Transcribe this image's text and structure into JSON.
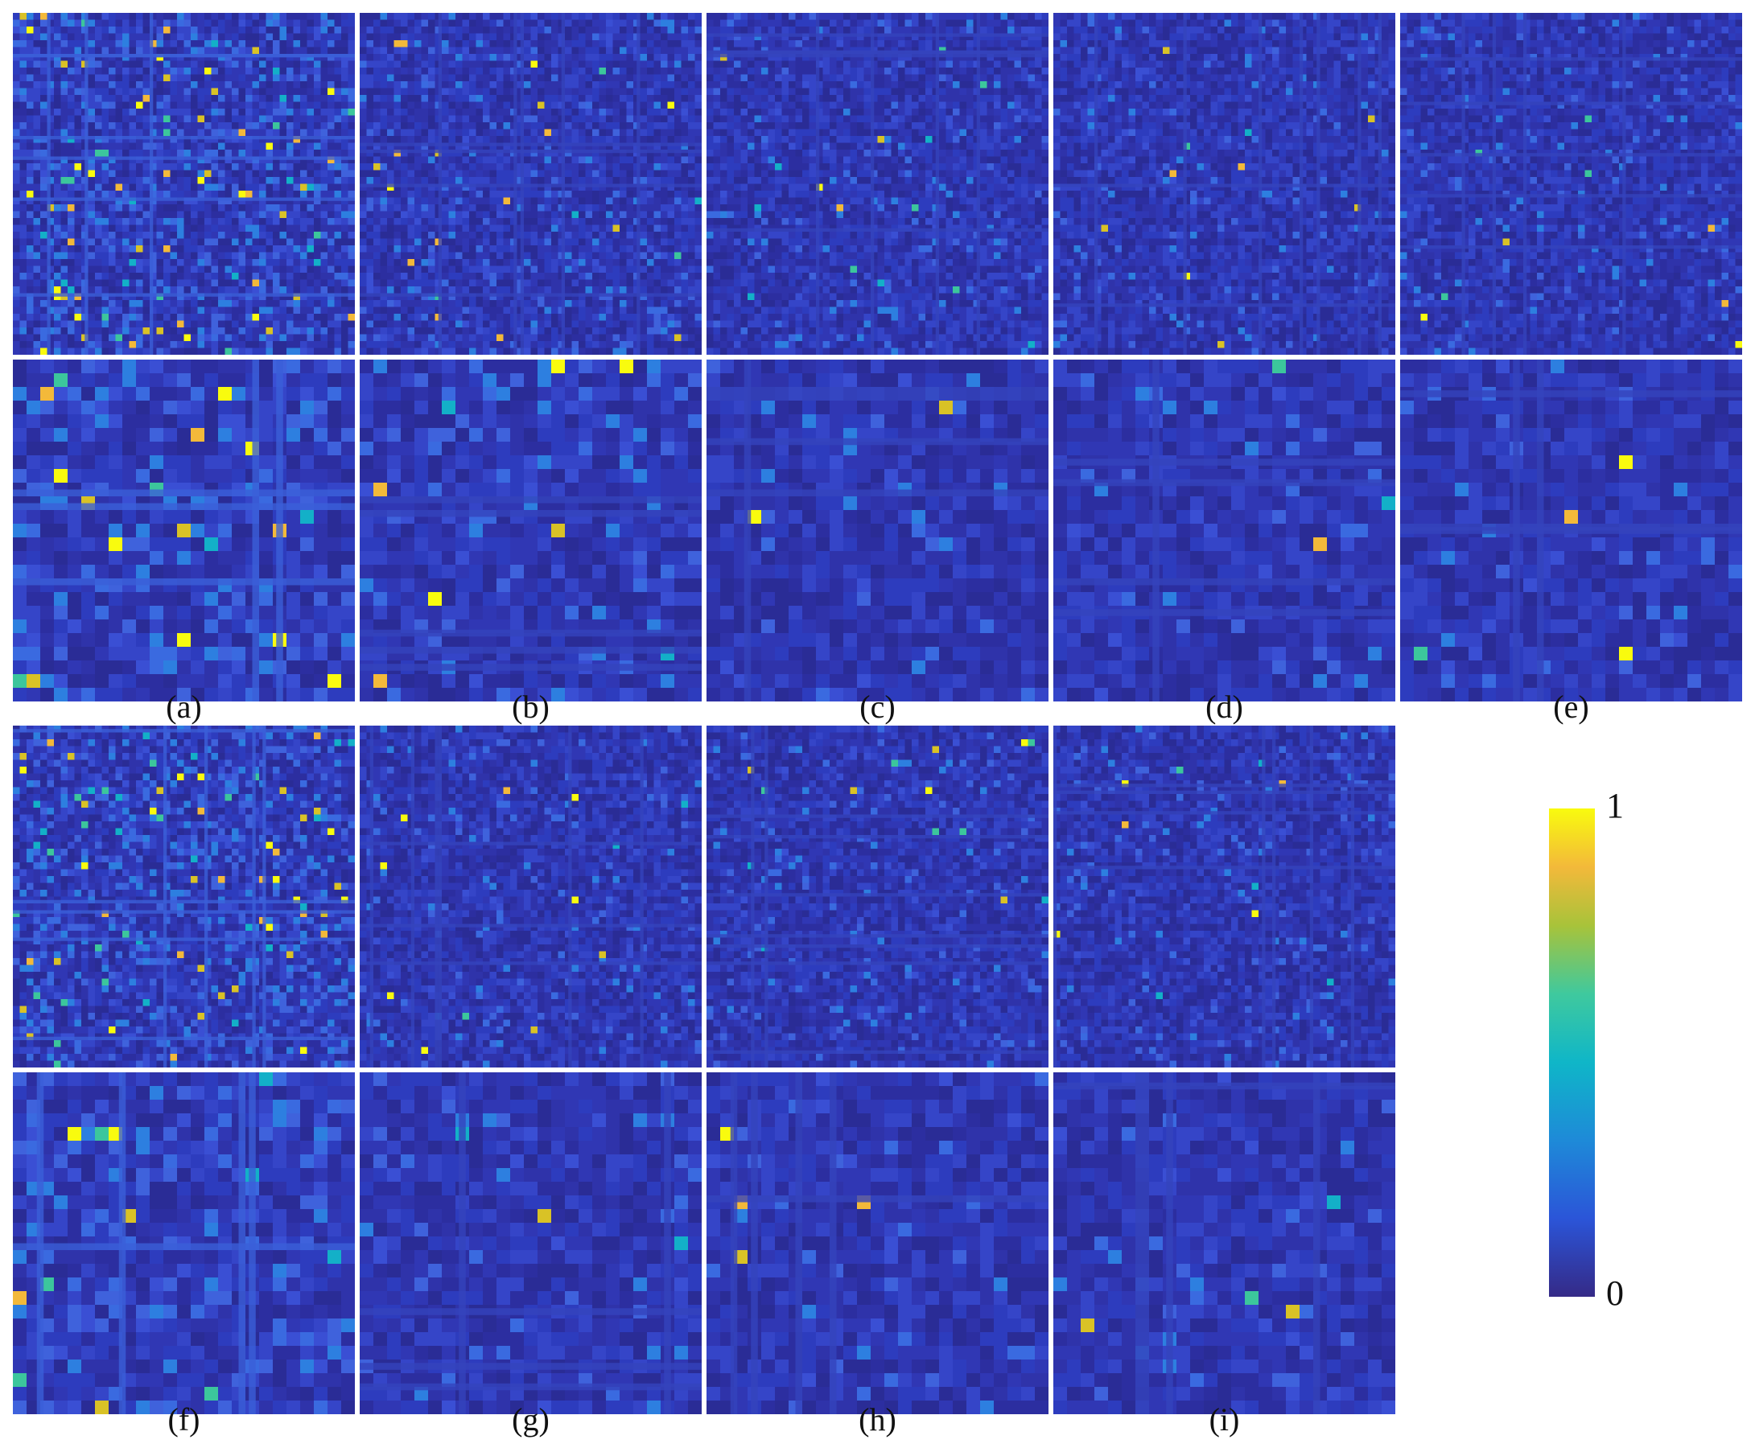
{
  "figure": {
    "panels": [
      {
        "label": "(a)",
        "intensity": "high"
      },
      {
        "label": "(b)",
        "intensity": "medium"
      },
      {
        "label": "(c)",
        "intensity": "low"
      },
      {
        "label": "(d)",
        "intensity": "low"
      },
      {
        "label": "(e)",
        "intensity": "low"
      },
      {
        "label": "(f)",
        "intensity": "high"
      },
      {
        "label": "(g)",
        "intensity": "low"
      },
      {
        "label": "(h)",
        "intensity": "low"
      },
      {
        "label": "(i)",
        "intensity": "low"
      }
    ],
    "colorbar": {
      "max_label": "1",
      "min_label": "0",
      "colormap": "parula",
      "stops": [
        "#352a87",
        "#2b55d8",
        "#1e8ad8",
        "#0fb6c8",
        "#3fc99e",
        "#a8c33a",
        "#f3b93a",
        "#f9fb0e"
      ]
    }
  }
}
